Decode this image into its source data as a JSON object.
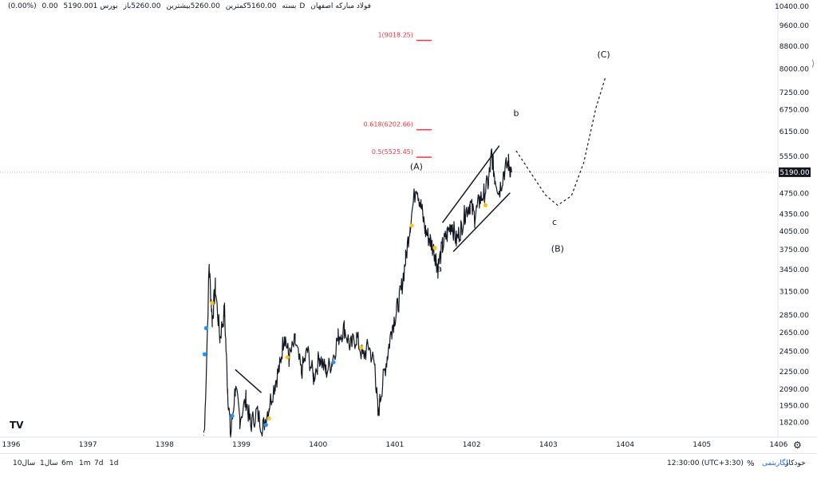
{
  "legend": {
    "name": "فولاد مبارکه اصفهان",
    "interval": "1D",
    "exchange": "بورس",
    "open": "5260.00باز",
    "high": "5260.00بیشترین",
    "low": "5160.00کمترین",
    "close": "5190.00بسته",
    "change": "0.00",
    "change_pct": "(0.00%)"
  },
  "bottom_bar": {
    "ranges": [
      "10سال",
      "1سال",
      "6m",
      "1m",
      "7d",
      "1d"
    ],
    "time": "12:30:00 (UTC+3:30)",
    "percent": "%",
    "log": "لگاریتمی",
    "auto": "خودکار"
  },
  "colors": {
    "candle": "#131722",
    "fib": "#f23645",
    "price_label_bg": "#131722",
    "marker_yellow": "#f5c518",
    "marker_blue": "#2196f3",
    "grid": "#f0f3fa"
  },
  "icons": {
    "logo": "tradingview-logo-icon",
    "settings": "gear-icon"
  },
  "chart_data": {
    "type": "line",
    "scale": "log",
    "current_price": "5190.00",
    "x_ticks": [
      "1396",
      "1397",
      "1398",
      "1399",
      "1400",
      "1401",
      "1402",
      "1403",
      "1404",
      "1405",
      "1406"
    ],
    "y_ticks": [
      "10400.00",
      "9600.00",
      "8800.00",
      "8000.00",
      "7250.00",
      "6750.00",
      "6150.00",
      "5550.00",
      "4750.00",
      "4350.00",
      "4050.00",
      "3750.00",
      "3450.00",
      "3150.00",
      "2850.00",
      "2650.00",
      "2450.00",
      "2250.00",
      "2090.00",
      "1950.00",
      "1820.00"
    ],
    "ylim": [
      1780,
      10400
    ],
    "xlim": [
      1396,
      1406.5
    ],
    "price_series": [
      [
        1398.52,
        1760
      ],
      [
        1398.58,
        3500
      ],
      [
        1398.62,
        2800
      ],
      [
        1398.66,
        3200
      ],
      [
        1398.72,
        2600
      ],
      [
        1398.78,
        2900
      ],
      [
        1398.82,
        2100
      ],
      [
        1398.86,
        1720
      ],
      [
        1398.92,
        2100
      ],
      [
        1398.98,
        1850
      ],
      [
        1399.06,
        2000
      ],
      [
        1399.12,
        1800
      ],
      [
        1399.2,
        1900
      ],
      [
        1399.28,
        1780
      ],
      [
        1399.36,
        1950
      ],
      [
        1399.44,
        2150
      ],
      [
        1399.5,
        2300
      ],
      [
        1399.56,
        2650
      ],
      [
        1399.62,
        2380
      ],
      [
        1399.7,
        2550
      ],
      [
        1399.78,
        2250
      ],
      [
        1399.86,
        2450
      ],
      [
        1399.94,
        2200
      ],
      [
        1400.02,
        2400
      ],
      [
        1400.1,
        2250
      ],
      [
        1400.18,
        2350
      ],
      [
        1400.26,
        2600
      ],
      [
        1400.34,
        2700
      ],
      [
        1400.42,
        2500
      ],
      [
        1400.5,
        2600
      ],
      [
        1400.58,
        2400
      ],
      [
        1400.66,
        2500
      ],
      [
        1400.74,
        2300
      ],
      [
        1400.78,
        1880
      ],
      [
        1400.84,
        2150
      ],
      [
        1400.9,
        2400
      ],
      [
        1400.96,
        2700
      ],
      [
        1401.02,
        2900
      ],
      [
        1401.08,
        3150
      ],
      [
        1401.14,
        3600
      ],
      [
        1401.2,
        4200
      ],
      [
        1401.28,
        4950
      ],
      [
        1401.34,
        4500
      ],
      [
        1401.4,
        4050
      ],
      [
        1401.46,
        3900
      ],
      [
        1401.52,
        3700
      ],
      [
        1401.56,
        3480
      ],
      [
        1401.62,
        3800
      ],
      [
        1401.68,
        4000
      ],
      [
        1401.74,
        4200
      ],
      [
        1401.8,
        3900
      ],
      [
        1401.86,
        4100
      ],
      [
        1401.92,
        4400
      ],
      [
        1401.98,
        4550
      ],
      [
        1402.04,
        4300
      ],
      [
        1402.1,
        4600
      ],
      [
        1402.16,
        4750
      ],
      [
        1402.22,
        5000
      ],
      [
        1402.26,
        5600
      ],
      [
        1402.3,
        5100
      ],
      [
        1402.36,
        4800
      ],
      [
        1402.42,
        5200
      ],
      [
        1402.48,
        5400
      ],
      [
        1402.52,
        5190
      ]
    ],
    "fib_levels": [
      {
        "label": "1(9018.25)",
        "value": 9018.25
      },
      {
        "label": "0.618(6202.66)",
        "value": 6202.66
      },
      {
        "label": "0.5(5525.45)",
        "value": 5525.45
      }
    ],
    "wave_labels": [
      {
        "text": "(A)",
        "x": 1401.28,
        "y": 5250
      },
      {
        "text": "a",
        "x": 1401.58,
        "y": 3420
      },
      {
        "text": "b",
        "x": 1402.58,
        "y": 6570
      },
      {
        "text": "c",
        "x": 1403.08,
        "y": 4160
      },
      {
        "text": "(B)",
        "x": 1403.12,
        "y": 3720
      },
      {
        "text": "(C)",
        "x": 1403.72,
        "y": 8400
      }
    ],
    "projection": [
      [
        1402.58,
        5680
      ],
      [
        1402.78,
        5150
      ],
      [
        1402.96,
        4720
      ],
      [
        1403.12,
        4520
      ],
      [
        1403.3,
        4700
      ],
      [
        1403.46,
        5400
      ],
      [
        1403.62,
        6800
      ],
      [
        1403.74,
        7700
      ]
    ],
    "trendlines": [
      [
        [
          1401.62,
          4200
        ],
        [
          1402.36,
          5800
        ]
      ],
      [
        [
          1401.76,
          3720
        ],
        [
          1402.5,
          4760
        ]
      ],
      [
        [
          1398.92,
          2270
        ],
        [
          1399.26,
          2060
        ]
      ]
    ],
    "markers": [
      {
        "x": 1398.62,
        "y": 3000,
        "color": "yellow"
      },
      {
        "x": 1398.54,
        "y": 2700,
        "color": "blue"
      },
      {
        "x": 1398.52,
        "y": 2420,
        "color": "blue"
      },
      {
        "x": 1398.88,
        "y": 1870,
        "color": "blue"
      },
      {
        "x": 1399.32,
        "y": 1800,
        "color": "blue"
      },
      {
        "x": 1399.36,
        "y": 1850,
        "color": "yellow"
      },
      {
        "x": 1399.6,
        "y": 2390,
        "color": "yellow"
      },
      {
        "x": 1400.2,
        "y": 2340,
        "color": "blue"
      },
      {
        "x": 1400.56,
        "y": 2490,
        "color": "yellow"
      },
      {
        "x": 1401.22,
        "y": 4150,
        "color": "yellow"
      },
      {
        "x": 1401.52,
        "y": 3780,
        "color": "yellow"
      },
      {
        "x": 1402.18,
        "y": 4520,
        "color": "yellow"
      }
    ]
  }
}
